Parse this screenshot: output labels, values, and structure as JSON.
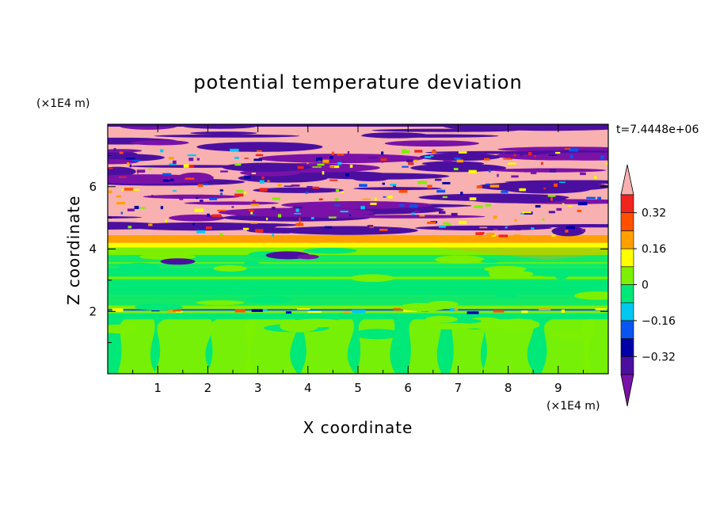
{
  "chart_data": {
    "type": "heatmap",
    "title": "potential temperature deviation",
    "xlabel": "X coordinate",
    "ylabel": "Z coordinate",
    "x_unit": "(×1E4 m)",
    "y_unit": "(×1E4 m)",
    "time_label": "t=7.4448e+06",
    "xlim": [
      0,
      10
    ],
    "ylim": [
      0,
      8
    ],
    "x_ticks": [
      1,
      2,
      3,
      4,
      5,
      6,
      7,
      8,
      9
    ],
    "y_ticks": [
      2,
      4,
      6
    ],
    "grid": false,
    "colorbar": {
      "position": "right",
      "levels": [
        -0.4,
        -0.32,
        -0.24,
        -0.16,
        -0.08,
        0,
        0.08,
        0.16,
        0.24,
        0.32,
        0.4
      ],
      "tick_labels": [
        "0.32",
        "0.16",
        "0",
        "−0.16",
        "−0.32"
      ],
      "tick_values": [
        0.32,
        0.16,
        0,
        -0.16,
        -0.32
      ],
      "colors": [
        "#7a12a8",
        "#4b0fa0",
        "#0000a8",
        "#0a55f0",
        "#00c8f0",
        "#00e878",
        "#7cf000",
        "#ffff00",
        "#ffa000",
        "#ff5000",
        "#f0241e",
        "#f8b0b0"
      ],
      "extend": "both"
    },
    "bands": [
      {
        "z": [
          0,
          1.95
        ],
        "dominant": "#00e878",
        "secondary": "#7cf000",
        "pattern": "plumes"
      },
      {
        "z": [
          1.95,
          2.1
        ],
        "dominant": "#7cf000",
        "pattern": "interface"
      },
      {
        "z": [
          2.1,
          4.05
        ],
        "dominant": "#7cf000",
        "secondary": "#00e878",
        "pattern": "layers"
      },
      {
        "z": [
          4.05,
          4.45
        ],
        "dominant": "#ffa000",
        "pattern": "uniform"
      },
      {
        "z": [
          4.45,
          8
        ],
        "dominant": "#f8b0b0",
        "secondary": "#4b0fa0",
        "pattern": "turbulent"
      }
    ]
  }
}
